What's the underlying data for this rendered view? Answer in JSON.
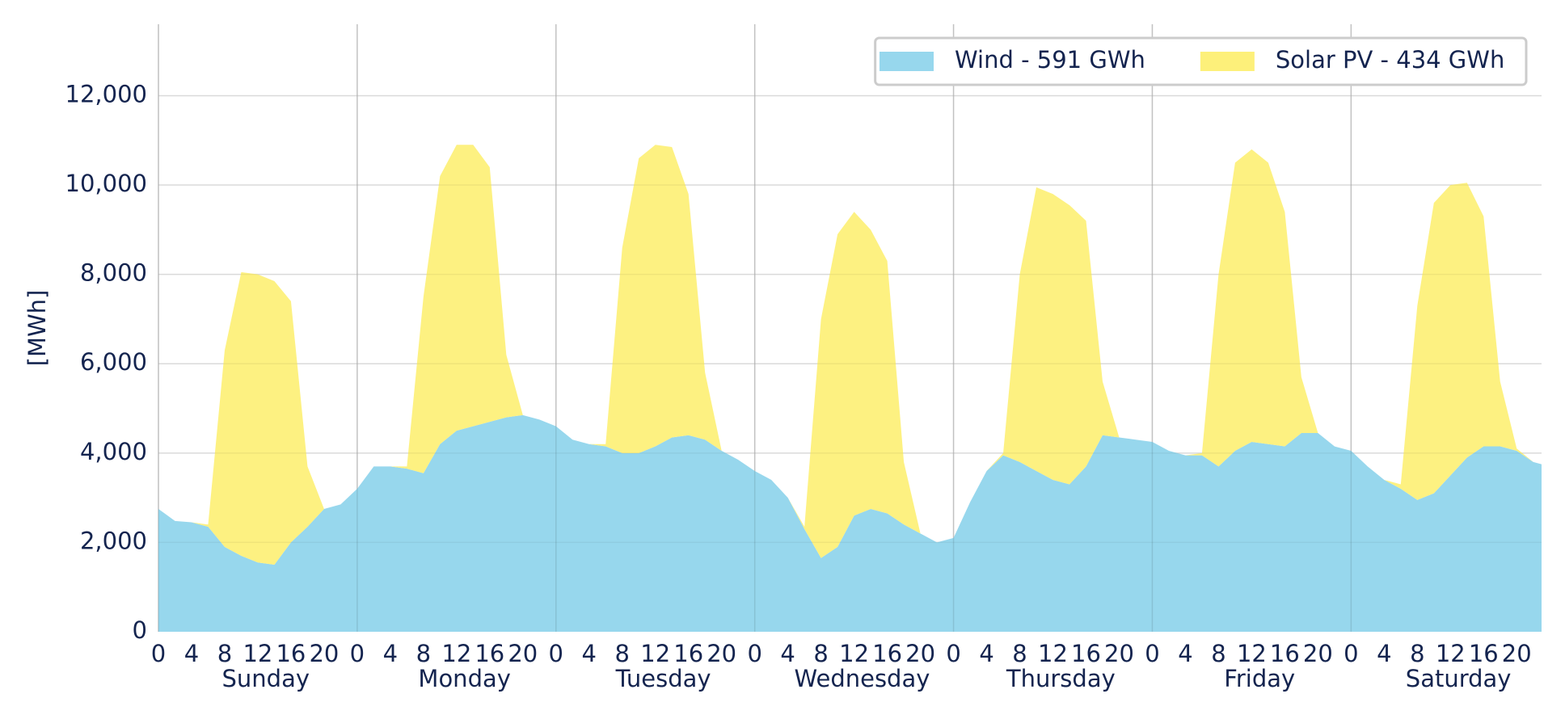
{
  "chart_data": {
    "type": "stacked_area",
    "y_label": "[MWh]",
    "day_labels": [
      "Sunday",
      "Monday",
      "Tuesday",
      "Wednesday",
      "Thursday",
      "Friday",
      "Saturday"
    ],
    "x": [
      0,
      2,
      4,
      6,
      8,
      10,
      12,
      14,
      16,
      18,
      20,
      22,
      24,
      26,
      28,
      30,
      32,
      34,
      36,
      38,
      40,
      42,
      44,
      46,
      48,
      50,
      52,
      54,
      56,
      58,
      60,
      62,
      64,
      66,
      68,
      70,
      72,
      74,
      76,
      78,
      80,
      82,
      84,
      86,
      88,
      90,
      92,
      94,
      96,
      98,
      100,
      102,
      104,
      106,
      108,
      110,
      112,
      114,
      116,
      118,
      120,
      122,
      124,
      126,
      128,
      130,
      132,
      134,
      136,
      138,
      140,
      142,
      144,
      146,
      148,
      150,
      152,
      154,
      156,
      158,
      160,
      162,
      164,
      166,
      167
    ],
    "series": [
      {
        "name": "Wind - 591 GWh",
        "color": "#97d7ed",
        "values": [
          2750,
          2480,
          2450,
          2350,
          1900,
          1700,
          1550,
          1500,
          2000,
          2350,
          2750,
          2850,
          3200,
          3700,
          3700,
          3650,
          3550,
          4200,
          4500,
          4600,
          4700,
          4800,
          4850,
          4750,
          4600,
          4300,
          4200,
          4150,
          4000,
          4000,
          4150,
          4350,
          4400,
          4300,
          4050,
          3850,
          3600,
          3400,
          3000,
          2300,
          1650,
          1900,
          2600,
          2750,
          2650,
          2400,
          2200,
          2000,
          2100,
          2900,
          3600,
          3950,
          3800,
          3600,
          3400,
          3300,
          3700,
          4400,
          4350,
          4300,
          4250,
          4050,
          3950,
          3950,
          3700,
          4050,
          4250,
          4200,
          4150,
          4450,
          4450,
          4150,
          4050,
          3700,
          3400,
          3200,
          2950,
          3100,
          3500,
          3900,
          4150,
          4150,
          4050,
          3800,
          3750
        ]
      },
      {
        "name": "Solar PV - 434 GWh",
        "color": "#fdf07a",
        "values": [
          0,
          0,
          0,
          50,
          4400,
          6350,
          6450,
          6350,
          5400,
          1350,
          0,
          0,
          0,
          0,
          0,
          50,
          3950,
          6000,
          6400,
          6300,
          5700,
          1400,
          0,
          0,
          0,
          0,
          0,
          50,
          4600,
          6600,
          6750,
          6500,
          5400,
          1500,
          0,
          0,
          0,
          0,
          0,
          50,
          5350,
          7000,
          6800,
          6250,
          5650,
          1400,
          0,
          0,
          0,
          0,
          0,
          50,
          4200,
          6350,
          6400,
          6250,
          5500,
          1200,
          0,
          0,
          0,
          0,
          0,
          50,
          4300,
          6450,
          6550,
          6300,
          5250,
          1250,
          0,
          0,
          0,
          0,
          0,
          100,
          4350,
          6500,
          6500,
          6150,
          5150,
          1450,
          50,
          0,
          0
        ]
      }
    ],
    "xlim": [
      0,
      167
    ],
    "xticks": [
      0,
      4,
      8,
      12,
      16,
      20,
      {
        "value": 24,
        "label": "0"
      },
      {
        "value": 28,
        "label": "4"
      },
      {
        "value": 32,
        "label": "8"
      },
      {
        "value": 36,
        "label": "12"
      },
      {
        "value": 40,
        "label": "16"
      },
      {
        "value": 44,
        "label": "20"
      },
      {
        "value": 48,
        "label": "0"
      },
      {
        "value": 52,
        "label": "4"
      },
      {
        "value": 56,
        "label": "8"
      },
      {
        "value": 60,
        "label": "12"
      },
      {
        "value": 64,
        "label": "16"
      },
      {
        "value": 68,
        "label": "20"
      },
      {
        "value": 72,
        "label": "0"
      },
      {
        "value": 76,
        "label": "4"
      },
      {
        "value": 80,
        "label": "8"
      },
      {
        "value": 84,
        "label": "12"
      },
      {
        "value": 88,
        "label": "16"
      },
      {
        "value": 92,
        "label": "20"
      },
      {
        "value": 96,
        "label": "0"
      },
      {
        "value": 100,
        "label": "4"
      },
      {
        "value": 104,
        "label": "8"
      },
      {
        "value": 108,
        "label": "12"
      },
      {
        "value": 112,
        "label": "16"
      },
      {
        "value": 116,
        "label": "20"
      },
      {
        "value": 120,
        "label": "0"
      },
      {
        "value": 124,
        "label": "4"
      },
      {
        "value": 128,
        "label": "8"
      },
      {
        "value": 132,
        "label": "12"
      },
      {
        "value": 136,
        "label": "16"
      },
      {
        "value": 140,
        "label": "20"
      },
      {
        "value": 144,
        "label": "0"
      },
      {
        "value": 148,
        "label": "4"
      },
      {
        "value": 152,
        "label": "8"
      },
      {
        "value": 156,
        "label": "12"
      },
      {
        "value": 160,
        "label": "16"
      },
      {
        "value": 164,
        "label": "20"
      }
    ],
    "ylim": [
      0,
      13600
    ],
    "yticks": [
      0,
      {
        "value": 2000,
        "label": "2,000"
      },
      {
        "value": 4000,
        "label": "4,000"
      },
      {
        "value": 6000,
        "label": "6,000"
      },
      {
        "value": 8000,
        "label": "8,000"
      },
      {
        "value": 10000,
        "label": "10,000"
      },
      {
        "value": 12000,
        "label": "12,000"
      }
    ],
    "grid": true,
    "legend": "top-right"
  }
}
